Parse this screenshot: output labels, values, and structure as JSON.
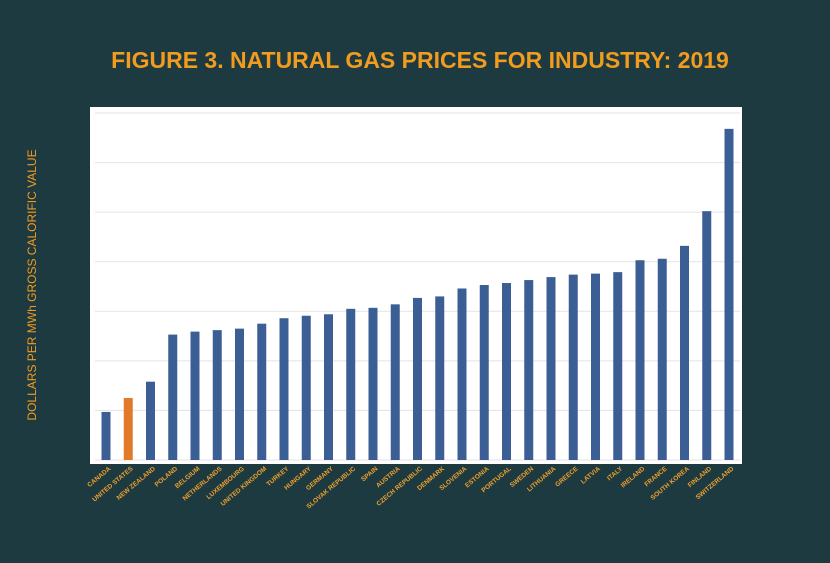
{
  "chart_data": {
    "type": "bar",
    "title": "FIGURE 3. NATURAL GAS PRICES FOR INDUSTRY: 2019",
    "y_label": "DOLLARS PER MWh GROSS CALORIFIC VALUE",
    "categories": [
      "CANADA",
      "UNITED STATES",
      "NEW ZEALAND",
      "POLAND",
      "BELGIUM",
      "NETHERLANDS",
      "LUXEMBOURG",
      "UNITED KINGDOM",
      "TURKEY",
      "HUNGARY",
      "GERMANY",
      "SLOVAK REPUBLIC",
      "SPAIN",
      "AUSTRIA",
      "CZECH REPUBLIC",
      "DENMARK",
      "SLOVENIA",
      "ESTONIA",
      "PORTUGAL",
      "SWEDEN",
      "LITHUANIA",
      "GREECE",
      "LATVIA",
      "ITALY",
      "IRELAND",
      "FRANCE",
      "SOUTH KOREA",
      "FINLAND",
      "SWITZERLAND"
    ],
    "values": [
      9.7,
      12.5,
      15.8,
      25.3,
      25.9,
      26.2,
      26.5,
      27.5,
      28.6,
      29.1,
      29.4,
      30.5,
      30.7,
      31.4,
      32.7,
      33.0,
      34.6,
      35.3,
      35.7,
      36.3,
      36.9,
      37.4,
      37.6,
      37.9,
      40.3,
      40.6,
      43.2,
      50.2,
      66.8
    ],
    "colors": [
      "#3b5f94",
      "#e27a2b",
      "#3b5f94",
      "#3b5f94",
      "#3b5f94",
      "#3b5f94",
      "#3b5f94",
      "#3b5f94",
      "#3b5f94",
      "#3b5f94",
      "#3b5f94",
      "#3b5f94",
      "#3b5f94",
      "#3b5f94",
      "#3b5f94",
      "#3b5f94",
      "#3b5f94",
      "#3b5f94",
      "#3b5f94",
      "#3b5f94",
      "#3b5f94",
      "#3b5f94",
      "#3b5f94",
      "#3b5f94",
      "#3b5f94",
      "#3b5f94",
      "#3b5f94",
      "#3b5f94",
      "#3b5f94"
    ],
    "ylim": [
      0,
      70
    ],
    "yticks": [
      0,
      10,
      20,
      30,
      40,
      50,
      60,
      70
    ],
    "grid": true
  }
}
